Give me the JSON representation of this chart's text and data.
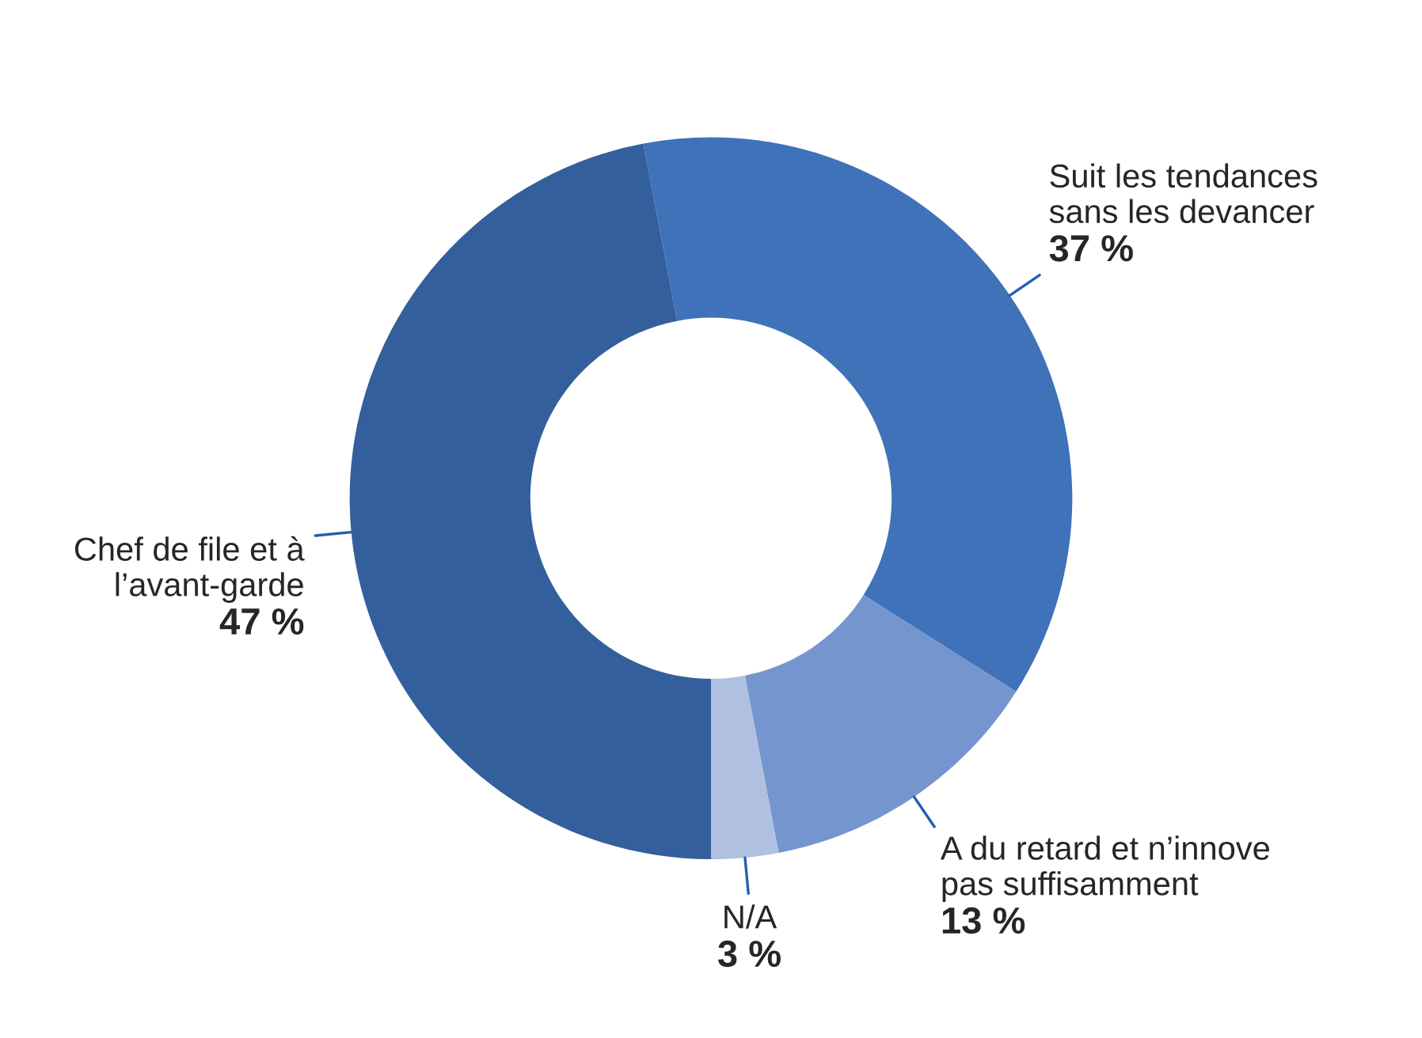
{
  "chart_data": {
    "type": "donut",
    "categories": [
      "Suit les tendances\nsans les devancer",
      "A du retard et n’innove\npas suffisamment",
      "N/A",
      "Chef de file et à\nl’avant-garde"
    ],
    "values": [
      37,
      13,
      3,
      47
    ],
    "value_labels": [
      "37 %",
      "13 %",
      "3 %",
      "47 %"
    ],
    "colors": [
      "#3f72b9",
      "#7595cf",
      "#b0c0e0",
      "#335f9c"
    ],
    "legend": false
  }
}
